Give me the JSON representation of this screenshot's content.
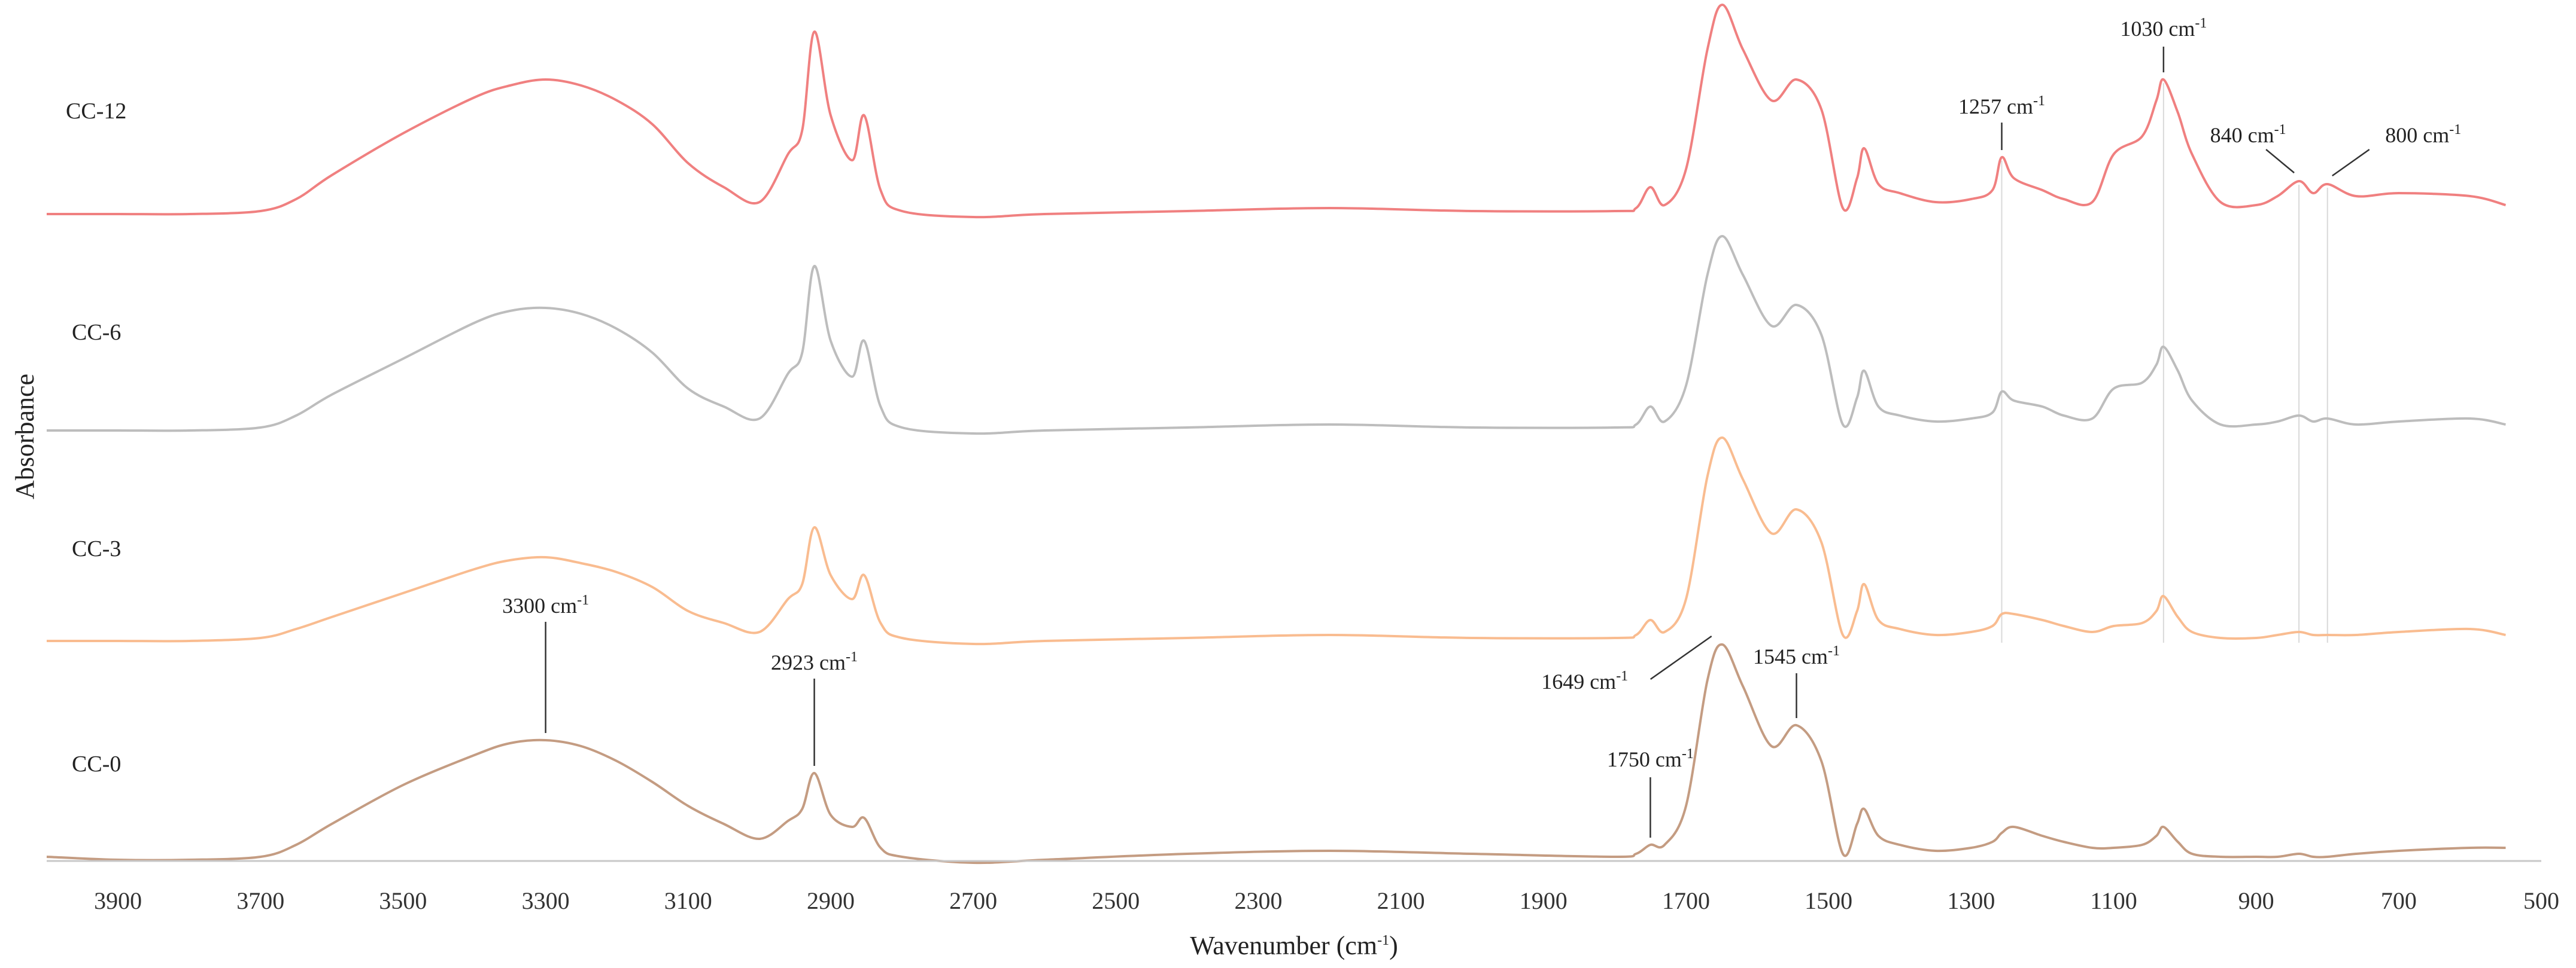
{
  "chart_data": {
    "type": "line",
    "title": "",
    "xlabel": "Wavenumber (cm⁻¹)",
    "ylabel": "Absorbance",
    "xlim": [
      4000,
      500
    ],
    "x_reversed": true,
    "grid": false,
    "legend": "none (series labelled directly at left of each trace)",
    "x_ticks": [
      3900,
      3700,
      3500,
      3300,
      3100,
      2900,
      2700,
      2500,
      2300,
      2100,
      1900,
      1700,
      1500,
      1300,
      1100,
      900,
      700,
      500
    ],
    "x_tick_labels": [
      "3900",
      "3700",
      "3500",
      "3300",
      "3100",
      "2900",
      "2700",
      "2500",
      "2300",
      "2100",
      "1900",
      "1700",
      "1500",
      "1300",
      "1100",
      "900",
      "700",
      "500"
    ],
    "stacked_offset": true,
    "series": [
      {
        "name": "CC-12",
        "color": "#f08080",
        "x": [
          4000,
          3900,
          3800,
          3700,
          3650,
          3600,
          3500,
          3400,
          3350,
          3300,
          3250,
          3200,
          3150,
          3100,
          3050,
          3000,
          2960,
          2940,
          2923,
          2900,
          2870,
          2853,
          2830,
          2800,
          2700,
          2600,
          2400,
          2200,
          2000,
          1800,
          1770,
          1750,
          1730,
          1700,
          1670,
          1649,
          1620,
          1580,
          1545,
          1510,
          1480,
          1460,
          1450,
          1430,
          1400,
          1350,
          1300,
          1270,
          1257,
          1240,
          1200,
          1170,
          1130,
          1100,
          1060,
          1040,
          1030,
          1010,
          990,
          950,
          900,
          870,
          840,
          820,
          800,
          760,
          700,
          600,
          550
        ],
        "y": [
          0.0,
          0.0,
          0.0,
          0.01,
          0.05,
          0.13,
          0.27,
          0.39,
          0.43,
          0.45,
          0.43,
          0.38,
          0.3,
          0.17,
          0.09,
          0.04,
          0.2,
          0.28,
          0.61,
          0.33,
          0.18,
          0.33,
          0.08,
          0.01,
          -0.01,
          0.0,
          0.01,
          0.02,
          0.01,
          0.01,
          0.02,
          0.09,
          0.03,
          0.15,
          0.55,
          0.7,
          0.55,
          0.38,
          0.45,
          0.35,
          0.02,
          0.12,
          0.22,
          0.1,
          0.07,
          0.04,
          0.05,
          0.08,
          0.19,
          0.12,
          0.08,
          0.05,
          0.04,
          0.2,
          0.26,
          0.38,
          0.45,
          0.34,
          0.2,
          0.04,
          0.03,
          0.06,
          0.11,
          0.07,
          0.1,
          0.06,
          0.07,
          0.06,
          0.03
        ]
      },
      {
        "name": "CC-6",
        "color": "#bdbdbd",
        "x": [
          4000,
          3900,
          3800,
          3700,
          3650,
          3600,
          3500,
          3400,
          3350,
          3300,
          3250,
          3200,
          3150,
          3100,
          3050,
          3000,
          2960,
          2940,
          2923,
          2900,
          2870,
          2853,
          2830,
          2800,
          2700,
          2600,
          2400,
          2200,
          2000,
          1800,
          1770,
          1750,
          1730,
          1700,
          1670,
          1649,
          1620,
          1580,
          1545,
          1510,
          1480,
          1460,
          1450,
          1430,
          1400,
          1350,
          1300,
          1270,
          1257,
          1240,
          1200,
          1170,
          1130,
          1100,
          1060,
          1040,
          1030,
          1010,
          990,
          950,
          900,
          870,
          840,
          820,
          800,
          760,
          700,
          600,
          550
        ],
        "y": [
          0.0,
          0.0,
          0.0,
          0.01,
          0.05,
          0.12,
          0.24,
          0.36,
          0.4,
          0.41,
          0.39,
          0.34,
          0.26,
          0.14,
          0.08,
          0.04,
          0.19,
          0.26,
          0.55,
          0.3,
          0.18,
          0.3,
          0.08,
          0.01,
          -0.01,
          0.0,
          0.01,
          0.02,
          0.01,
          0.01,
          0.02,
          0.08,
          0.03,
          0.15,
          0.52,
          0.65,
          0.52,
          0.35,
          0.42,
          0.32,
          0.02,
          0.11,
          0.2,
          0.08,
          0.05,
          0.03,
          0.04,
          0.06,
          0.13,
          0.1,
          0.08,
          0.05,
          0.04,
          0.14,
          0.16,
          0.22,
          0.28,
          0.2,
          0.1,
          0.02,
          0.02,
          0.03,
          0.05,
          0.03,
          0.04,
          0.02,
          0.03,
          0.04,
          0.02
        ]
      },
      {
        "name": "CC-3",
        "color": "#f9bc90",
        "x": [
          4000,
          3900,
          3800,
          3700,
          3650,
          3600,
          3500,
          3400,
          3350,
          3300,
          3250,
          3200,
          3150,
          3100,
          3050,
          3000,
          2960,
          2940,
          2923,
          2900,
          2870,
          2853,
          2830,
          2800,
          2700,
          2600,
          2400,
          2200,
          2000,
          1800,
          1770,
          1750,
          1730,
          1700,
          1670,
          1649,
          1620,
          1580,
          1545,
          1510,
          1480,
          1460,
          1450,
          1430,
          1400,
          1350,
          1300,
          1270,
          1257,
          1240,
          1200,
          1170,
          1130,
          1100,
          1060,
          1040,
          1030,
          1010,
          990,
          950,
          900,
          870,
          840,
          820,
          800,
          760,
          700,
          600,
          550
        ],
        "y": [
          0.0,
          0.0,
          0.0,
          0.01,
          0.04,
          0.08,
          0.16,
          0.24,
          0.27,
          0.28,
          0.26,
          0.23,
          0.18,
          0.1,
          0.06,
          0.03,
          0.14,
          0.19,
          0.38,
          0.22,
          0.14,
          0.22,
          0.06,
          0.01,
          -0.01,
          0.0,
          0.01,
          0.02,
          0.01,
          0.01,
          0.02,
          0.07,
          0.03,
          0.14,
          0.55,
          0.68,
          0.54,
          0.36,
          0.44,
          0.33,
          0.02,
          0.1,
          0.19,
          0.07,
          0.04,
          0.02,
          0.03,
          0.05,
          0.09,
          0.09,
          0.07,
          0.05,
          0.03,
          0.05,
          0.06,
          0.1,
          0.15,
          0.08,
          0.03,
          0.01,
          0.01,
          0.02,
          0.03,
          0.02,
          0.02,
          0.02,
          0.03,
          0.04,
          0.02
        ]
      },
      {
        "name": "CC-0",
        "color": "#c49c82",
        "x": [
          4000,
          3900,
          3800,
          3700,
          3650,
          3600,
          3500,
          3400,
          3350,
          3300,
          3250,
          3200,
          3150,
          3100,
          3050,
          3000,
          2960,
          2940,
          2923,
          2900,
          2870,
          2853,
          2830,
          2800,
          2700,
          2600,
          2400,
          2200,
          2000,
          1800,
          1770,
          1750,
          1730,
          1700,
          1670,
          1649,
          1620,
          1580,
          1545,
          1510,
          1480,
          1460,
          1450,
          1430,
          1400,
          1350,
          1300,
          1270,
          1257,
          1240,
          1200,
          1170,
          1130,
          1100,
          1060,
          1040,
          1030,
          1010,
          990,
          950,
          900,
          870,
          840,
          820,
          800,
          760,
          700,
          600,
          550
        ],
        "y": [
          0.01,
          0.0,
          0.0,
          0.01,
          0.05,
          0.12,
          0.25,
          0.35,
          0.39,
          0.4,
          0.38,
          0.33,
          0.26,
          0.18,
          0.12,
          0.07,
          0.13,
          0.17,
          0.29,
          0.15,
          0.11,
          0.14,
          0.04,
          0.01,
          -0.01,
          0.0,
          0.02,
          0.03,
          0.02,
          0.01,
          0.02,
          0.05,
          0.05,
          0.18,
          0.6,
          0.72,
          0.58,
          0.38,
          0.45,
          0.33,
          0.02,
          0.12,
          0.17,
          0.08,
          0.05,
          0.03,
          0.04,
          0.06,
          0.09,
          0.11,
          0.08,
          0.06,
          0.04,
          0.04,
          0.05,
          0.08,
          0.11,
          0.06,
          0.02,
          0.01,
          0.01,
          0.01,
          0.02,
          0.01,
          0.01,
          0.02,
          0.03,
          0.04,
          0.04
        ]
      }
    ],
    "annotations": [
      {
        "text": "3300 cm",
        "sup": "-1",
        "x": 3300,
        "series": "CC-0"
      },
      {
        "text": "2923 cm",
        "sup": "-1",
        "x": 2923,
        "series": "CC-0"
      },
      {
        "text": "1750 cm",
        "sup": "-1",
        "x": 1750,
        "series": "CC-0"
      },
      {
        "text": "1649 cm",
        "sup": "-1",
        "x": 1649,
        "series": "CC-0"
      },
      {
        "text": "1545 cm",
        "sup": "-1",
        "x": 1545,
        "series": "CC-0"
      },
      {
        "text": "1257 cm",
        "sup": "-1",
        "x": 1257,
        "series": "CC-12"
      },
      {
        "text": "1030 cm",
        "sup": "-1",
        "x": 1030,
        "series": "CC-12"
      },
      {
        "text": "840 cm",
        "sup": "-1",
        "x": 840,
        "series": "CC-12"
      },
      {
        "text": "800 cm",
        "sup": "-1",
        "x": 800,
        "series": "CC-12"
      }
    ],
    "reference_lines_x": [
      1257,
      1030,
      840,
      800
    ],
    "xlabel_text": "Wavenumber (cm",
    "xlabel_sup": "-1"
  }
}
